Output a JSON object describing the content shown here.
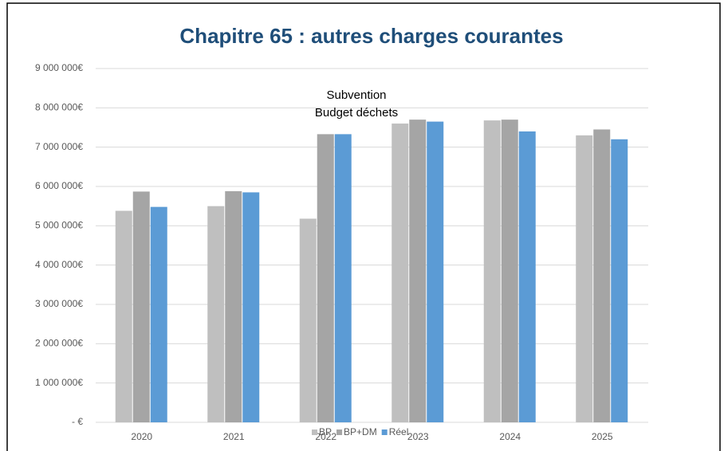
{
  "chart_data": {
    "type": "bar",
    "title": "Chapitre 65 : autres charges courantes",
    "annotation_lines": [
      "Subvention",
      "Budget déchets"
    ],
    "categories": [
      "2020",
      "2021",
      "2022",
      "2023",
      "2024",
      "2025"
    ],
    "series": [
      {
        "name": "BP",
        "color": "#bfbfbf",
        "values": [
          5380000,
          5500000,
          5180000,
          7600000,
          7680000,
          7300000
        ]
      },
      {
        "name": "BP+DM",
        "color": "#a5a5a5",
        "values": [
          5870000,
          5880000,
          7330000,
          7700000,
          7700000,
          7450000
        ]
      },
      {
        "name": "Réel",
        "color": "#5b9bd5",
        "values": [
          5480000,
          5850000,
          7330000,
          7650000,
          7400000,
          7200000
        ]
      }
    ],
    "ylim": [
      0,
      9000000
    ],
    "yticks": [
      {
        "value": 0,
        "label": "- €"
      },
      {
        "value": 1000000,
        "label": "1 000 000€"
      },
      {
        "value": 2000000,
        "label": "2 000 000€"
      },
      {
        "value": 3000000,
        "label": "3 000 000€"
      },
      {
        "value": 4000000,
        "label": "4 000 000€"
      },
      {
        "value": 5000000,
        "label": "5 000 000€"
      },
      {
        "value": 6000000,
        "label": "6 000 000€"
      },
      {
        "value": 7000000,
        "label": "7 000 000€"
      },
      {
        "value": 8000000,
        "label": "8 000 000€"
      },
      {
        "value": 9000000,
        "label": "9 000 000€"
      }
    ],
    "grid": true,
    "legend": "bottom"
  }
}
